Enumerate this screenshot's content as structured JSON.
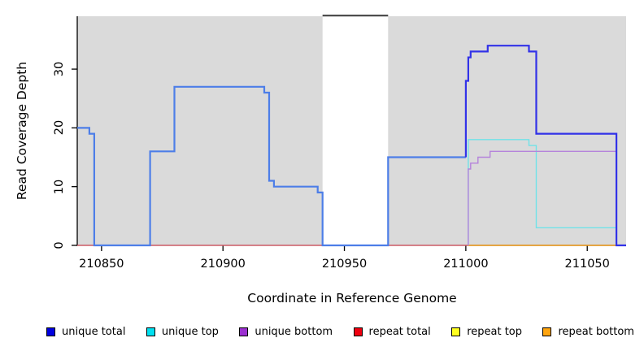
{
  "chart_data": {
    "type": "line",
    "subtype": "step-coverage-plot",
    "title": "",
    "xlabel": "Coordinate in Reference Genome",
    "ylabel": "Read Coverage Depth",
    "xlim": [
      210840,
      211066
    ],
    "ylim": [
      0,
      39
    ],
    "x_ticks": [
      210850,
      210900,
      210950,
      211000,
      211050
    ],
    "y_ticks": [
      0,
      10,
      20,
      30
    ],
    "grid": "off",
    "plot_background_color": "#DADADA",
    "no_data_gap_x": [
      210941,
      210968
    ],
    "gap_border_color": "#4D4D4D",
    "axis_color": "#000000",
    "series": [
      {
        "id": "repeat-top",
        "name": "repeat top",
        "color": "#FFFF20",
        "width": 1.0,
        "step_points": [
          [
            210840,
            0
          ],
          [
            211066,
            0
          ]
        ]
      },
      {
        "id": "repeat-total",
        "name": "repeat total",
        "color": "#E8606E",
        "width": 1.3,
        "step_points": [
          [
            210840,
            0
          ],
          [
            211001,
            0
          ]
        ]
      },
      {
        "id": "repeat-bottom",
        "name": "repeat bottom",
        "color": "#F5A01F",
        "width": 1.6,
        "step_points": [
          [
            211001,
            0
          ],
          [
            211062,
            0
          ]
        ]
      },
      {
        "id": "unique-top",
        "name": "unique top",
        "color": "#70E2E8",
        "width": 1.4,
        "step_points": [
          [
            211001,
            0
          ],
          [
            211001,
            18
          ],
          [
            211026,
            17
          ],
          [
            211029,
            3
          ],
          [
            211062,
            0
          ],
          [
            211066,
            0
          ]
        ]
      },
      {
        "id": "unique-bottom",
        "name": "unique bottom",
        "color": "#B583DB",
        "width": 1.4,
        "step_points": [
          [
            211001,
            0
          ],
          [
            211001,
            13
          ],
          [
            211002,
            14
          ],
          [
            211005,
            15
          ],
          [
            211010,
            16
          ],
          [
            211062,
            0
          ],
          [
            211066,
            0
          ]
        ]
      },
      {
        "id": "unique-total-left",
        "name": "unique total",
        "color": "#4D7EE8",
        "width": 2.2,
        "step_points": [
          [
            210840,
            20
          ],
          [
            210845,
            19
          ],
          [
            210847,
            0
          ],
          [
            210870,
            16
          ],
          [
            210880,
            27
          ],
          [
            210917,
            26
          ],
          [
            210919,
            11
          ],
          [
            210921,
            10
          ],
          [
            210939,
            9
          ],
          [
            210941,
            0
          ],
          [
            210968,
            15
          ],
          [
            211000,
            15
          ]
        ]
      },
      {
        "id": "unique-total-right",
        "name": "unique total",
        "color": "#3232E8",
        "width": 2.2,
        "step_points": [
          [
            211000,
            15
          ],
          [
            211000,
            28
          ],
          [
            211001,
            32
          ],
          [
            211002,
            33
          ],
          [
            211009,
            34
          ],
          [
            211026,
            33
          ],
          [
            211029,
            19
          ],
          [
            211062,
            0
          ],
          [
            211066,
            0
          ]
        ]
      }
    ],
    "legend": [
      {
        "label": "unique total",
        "color": "#0000E0"
      },
      {
        "label": "unique top",
        "color": "#00E0F0"
      },
      {
        "label": "unique bottom",
        "color": "#9B30D0"
      },
      {
        "label": "repeat total",
        "color": "#F00010"
      },
      {
        "label": "repeat top",
        "color": "#FFFF20"
      },
      {
        "label": "repeat bottom",
        "color": "#FFA510"
      }
    ],
    "legend_position": "bottom"
  },
  "axes": {
    "x_title": "Coordinate in Reference Genome",
    "y_title": "Read Coverage Depth"
  }
}
